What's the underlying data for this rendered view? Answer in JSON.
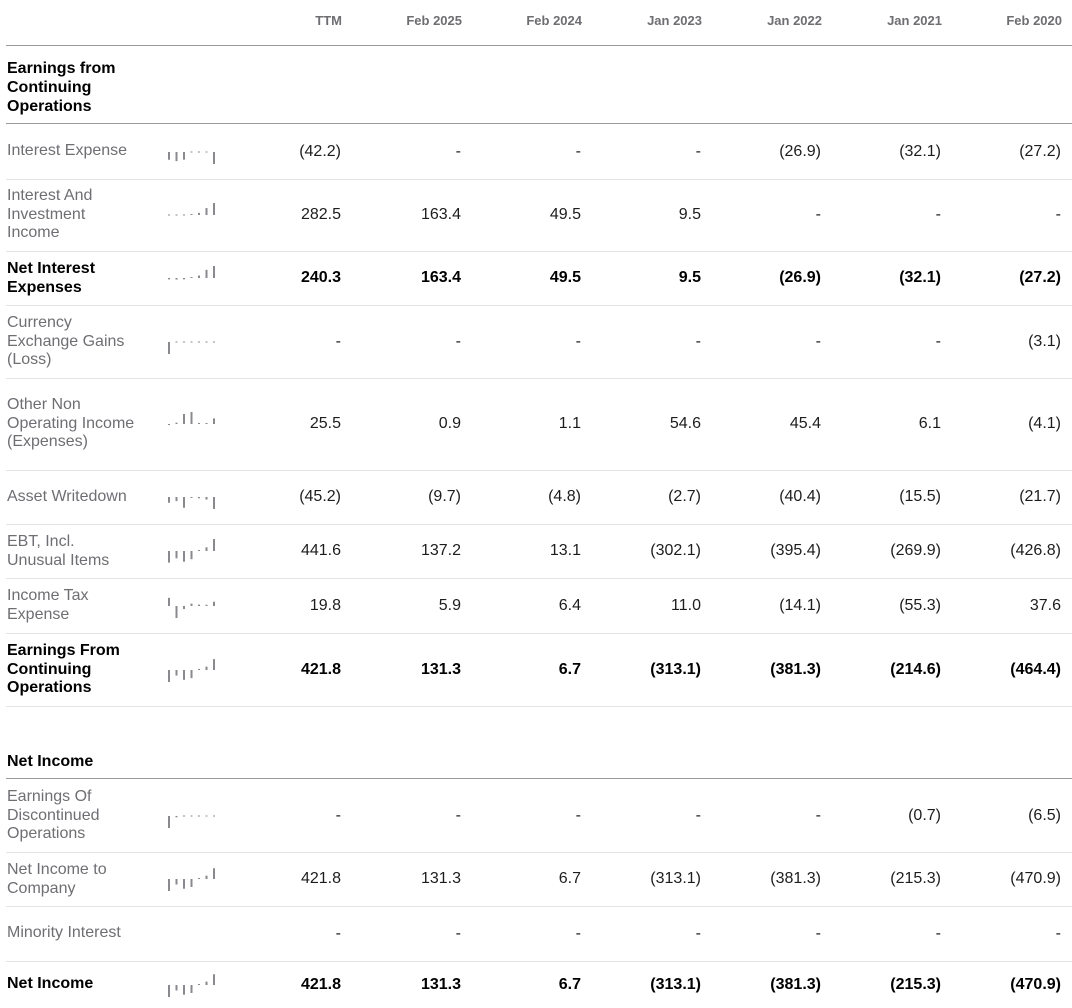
{
  "columns": [
    "TTM",
    "Feb 2025",
    "Feb 2024",
    "Jan 2023",
    "Jan 2022",
    "Jan 2021",
    "Feb 2020"
  ],
  "sections": [
    {
      "title": "Earnings from Continuing Operations",
      "rows": [
        {
          "label": "Interest Expense",
          "bold": false,
          "values": [
            "(42.2)",
            "-",
            "-",
            "-",
            "(26.9)",
            "(32.1)",
            "(27.2)"
          ]
        },
        {
          "label": "Interest And Investment Income",
          "bold": false,
          "values": [
            "282.5",
            "163.4",
            "49.5",
            "9.5",
            "-",
            "-",
            "-"
          ]
        },
        {
          "label": "Net Interest Expenses",
          "bold": true,
          "values": [
            "240.3",
            "163.4",
            "49.5",
            "9.5",
            "(26.9)",
            "(32.1)",
            "(27.2)"
          ]
        },
        {
          "label": "Currency Exchange Gains (Loss)",
          "bold": false,
          "values": [
            "-",
            "-",
            "-",
            "-",
            "-",
            "-",
            "(3.1)"
          ]
        },
        {
          "label": "Other Non Operating Income (Expenses)",
          "bold": false,
          "values": [
            "25.5",
            "0.9",
            "1.1",
            "54.6",
            "45.4",
            "6.1",
            "(4.1)"
          ]
        },
        {
          "label": "Asset Writedown",
          "bold": false,
          "values": [
            "(45.2)",
            "(9.7)",
            "(4.8)",
            "(2.7)",
            "(40.4)",
            "(15.5)",
            "(21.7)"
          ]
        },
        {
          "label": "EBT, Incl. Unusual Items",
          "bold": false,
          "values": [
            "441.6",
            "137.2",
            "13.1",
            "(302.1)",
            "(395.4)",
            "(269.9)",
            "(426.8)"
          ]
        },
        {
          "label": "Income Tax Expense",
          "bold": false,
          "values": [
            "19.8",
            "5.9",
            "6.4",
            "11.0",
            "(14.1)",
            "(55.3)",
            "37.6"
          ]
        },
        {
          "label": "Earnings From Continuing Operations",
          "bold": true,
          "values": [
            "421.8",
            "131.3",
            "6.7",
            "(313.1)",
            "(381.3)",
            "(214.6)",
            "(464.4)"
          ]
        }
      ]
    },
    {
      "title": "Net Income",
      "rows": [
        {
          "label": "Earnings Of Discontinued Operations",
          "bold": false,
          "values": [
            "-",
            "-",
            "-",
            "-",
            "-",
            "(0.7)",
            "(6.5)"
          ]
        },
        {
          "label": "Net Income to Company",
          "bold": false,
          "values": [
            "421.8",
            "131.3",
            "6.7",
            "(313.1)",
            "(381.3)",
            "(215.3)",
            "(470.9)"
          ]
        },
        {
          "label": "Minority Interest",
          "bold": false,
          "values": [
            "-",
            "-",
            "-",
            "-",
            "-",
            "-",
            "-"
          ]
        },
        {
          "label": "Net Income",
          "bold": true,
          "values": [
            "421.8",
            "131.3",
            "6.7",
            "(313.1)",
            "(381.3)",
            "(215.3)",
            "(470.9)"
          ]
        }
      ]
    }
  ],
  "colors": {
    "spark": "#8a8a8e",
    "label_muted": "#6e6e73",
    "header_rule": "#9a9a9a",
    "row_rule": "#e4e4e6"
  }
}
